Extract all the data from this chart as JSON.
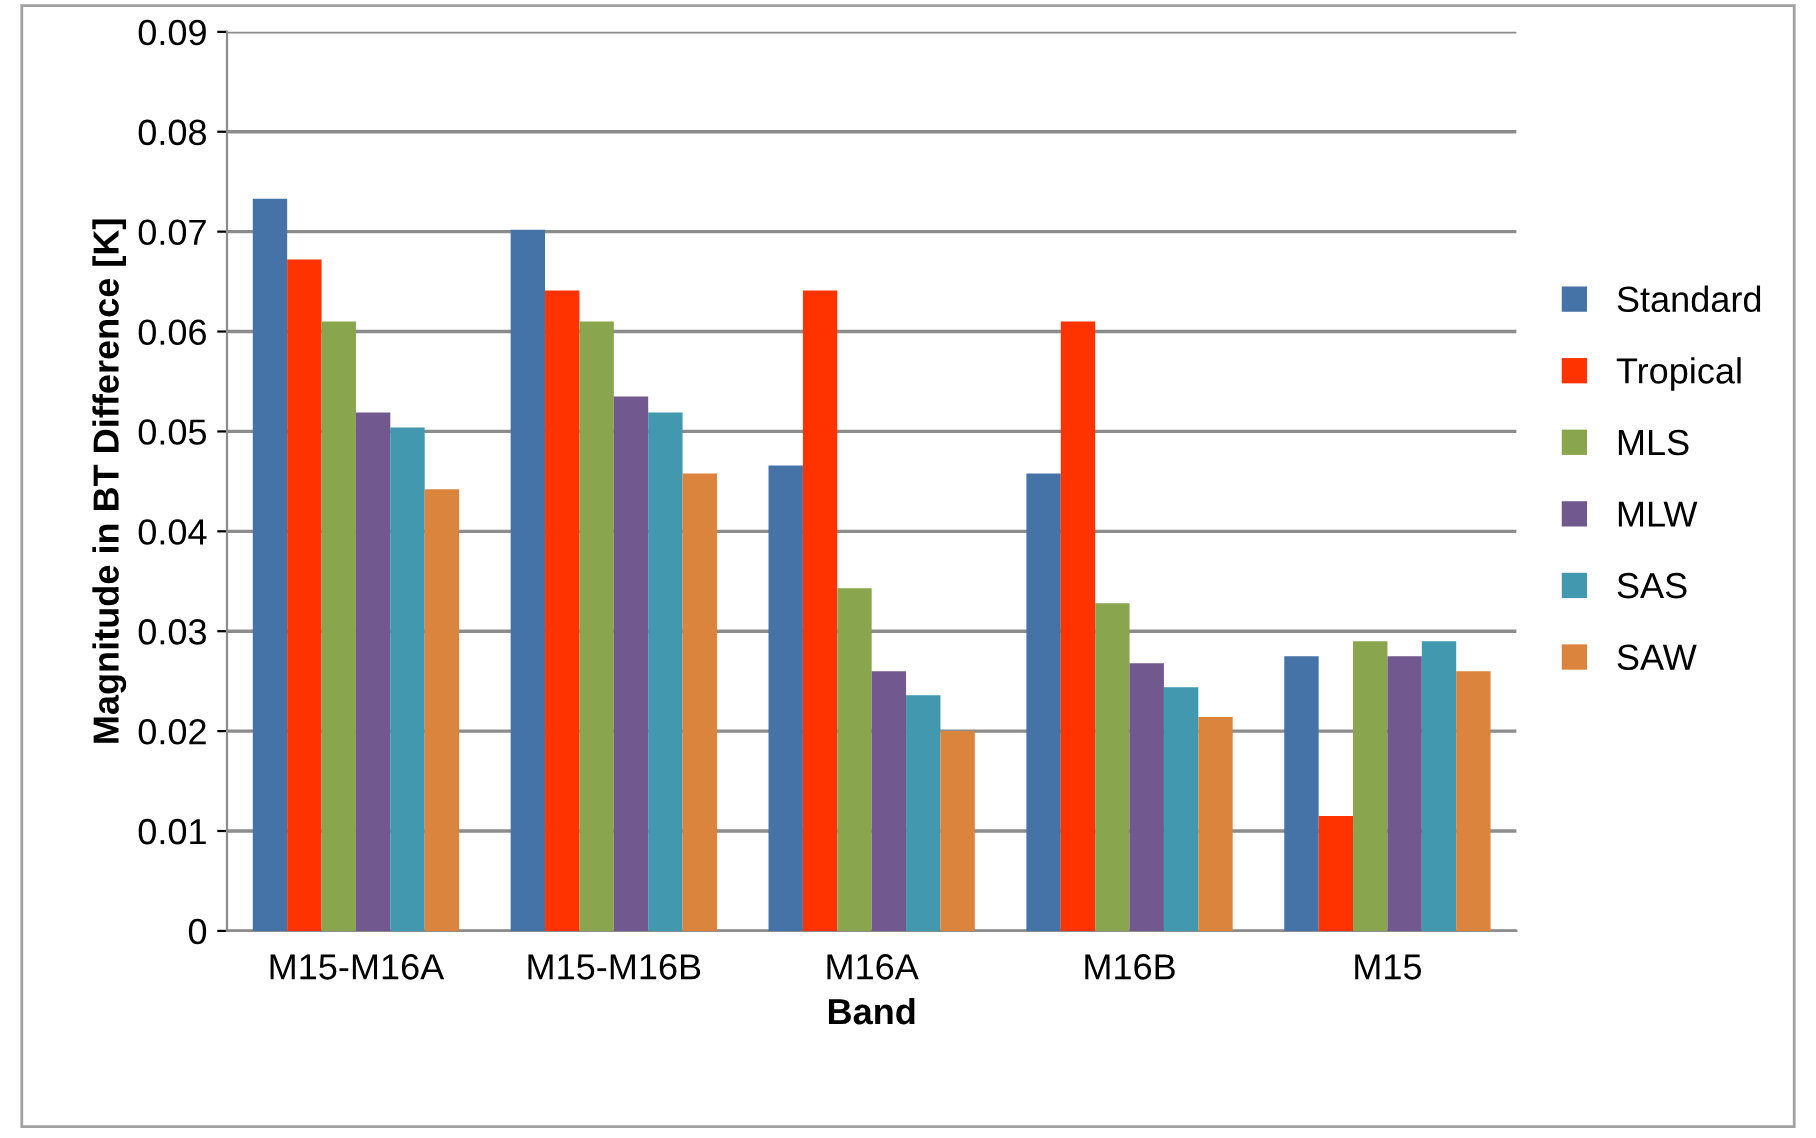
{
  "chart_data": {
    "type": "bar",
    "xlabel": "Band",
    "ylabel": "Magnitude in BT Difference [K]",
    "categories": [
      "M15-M16A",
      "M15-M16B",
      "M16A",
      "M16B",
      "M15"
    ],
    "series": [
      {
        "name": "Standard",
        "color": "#4572a7",
        "values": [
          0.0733,
          0.0702,
          0.0466,
          0.0458,
          0.0275
        ]
      },
      {
        "name": "Tropical",
        "color": "#ff3300",
        "values": [
          0.0672,
          0.0641,
          0.0641,
          0.061,
          0.0115
        ]
      },
      {
        "name": "MLS",
        "color": "#89a54e",
        "values": [
          0.061,
          0.061,
          0.0343,
          0.0328,
          0.029
        ]
      },
      {
        "name": "MLW",
        "color": "#71588f",
        "values": [
          0.0519,
          0.0535,
          0.026,
          0.0268,
          0.0275
        ]
      },
      {
        "name": "SAS",
        "color": "#4198af",
        "values": [
          0.0504,
          0.0519,
          0.0236,
          0.0244,
          0.029
        ]
      },
      {
        "name": "SAW",
        "color": "#db843d",
        "values": [
          0.0442,
          0.0458,
          0.02,
          0.0214,
          0.026
        ]
      }
    ],
    "ylim": [
      0,
      0.09
    ],
    "yticks": [
      0,
      0.01,
      0.02,
      0.03,
      0.04,
      0.05,
      0.06,
      0.07,
      0.08,
      0.09
    ],
    "grid": "y",
    "legend": "right"
  }
}
